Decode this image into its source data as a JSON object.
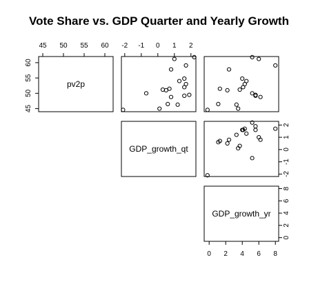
{
  "chart_data": {
    "type": "scatter",
    "title": "Vote Share vs. GDP Quarter and Yearly Growth",
    "variables": [
      "pv2p",
      "GDP_growth_qt",
      "GDP_growth_yr"
    ],
    "axes": {
      "pv2p": {
        "ticks": [
          45,
          50,
          55,
          60
        ],
        "lim": [
          44,
          62
        ]
      },
      "GDP_growth_qt": {
        "ticks": [
          -2,
          -1,
          0,
          1,
          2
        ],
        "lim": [
          -2.2,
          2.3
        ]
      },
      "GDP_growth_yr": {
        "ticks": [
          0,
          2,
          4,
          6,
          8
        ],
        "lim": [
          -0.6,
          8.4
        ]
      },
      "GDP_growth_yr_as_row": {
        "ticks": [
          0,
          2,
          4,
          6,
          8
        ]
      }
    },
    "observations": [
      {
        "pv2p": 61.2,
        "GDP_growth_qt": 1.0,
        "GDP_growth_yr": 6.0
      },
      {
        "pv2p": 61.8,
        "GDP_growth_qt": 2.2,
        "GDP_growth_yr": 5.2
      },
      {
        "pv2p": 59.1,
        "GDP_growth_qt": 1.7,
        "GDP_growth_yr": 8.0
      },
      {
        "pv2p": 57.8,
        "GDP_growth_qt": 0.8,
        "GDP_growth_yr": 2.4
      },
      {
        "pv2p": 54.8,
        "GDP_growth_qt": 1.6,
        "GDP_growth_yr": 4.0
      },
      {
        "pv2p": 54.0,
        "GDP_growth_qt": 1.3,
        "GDP_growth_yr": 4.5
      },
      {
        "pv2p": 53.0,
        "GDP_growth_qt": 1.7,
        "GDP_growth_yr": 4.3
      },
      {
        "pv2p": 52.0,
        "GDP_growth_qt": 1.6,
        "GDP_growth_yr": 4.1
      },
      {
        "pv2p": 51.5,
        "GDP_growth_qt": 0.7,
        "GDP_growth_yr": 1.3
      },
      {
        "pv2p": 51.2,
        "GDP_growth_qt": 0.3,
        "GDP_growth_yr": 3.7
      },
      {
        "pv2p": 51.0,
        "GDP_growth_qt": 0.5,
        "GDP_growth_yr": 2.2
      },
      {
        "pv2p": 50.0,
        "GDP_growth_qt": -0.7,
        "GDP_growth_yr": 5.2
      },
      {
        "pv2p": 49.5,
        "GDP_growth_qt": 1.9,
        "GDP_growth_yr": 5.6
      },
      {
        "pv2p": 49.2,
        "GDP_growth_qt": 1.6,
        "GDP_growth_yr": 5.6
      },
      {
        "pv2p": 48.8,
        "GDP_growth_qt": 0.8,
        "GDP_growth_yr": 6.2
      },
      {
        "pv2p": 46.5,
        "GDP_growth_qt": 0.6,
        "GDP_growth_yr": 1.1
      },
      {
        "pv2p": 46.3,
        "GDP_growth_qt": 1.2,
        "GDP_growth_yr": 3.3
      },
      {
        "pv2p": 45.0,
        "GDP_growth_qt": 0.1,
        "GDP_growth_yr": 3.5
      },
      {
        "pv2p": 44.6,
        "GDP_growth_qt": -2.1,
        "GDP_growth_yr": -0.2
      }
    ],
    "grid": false
  }
}
